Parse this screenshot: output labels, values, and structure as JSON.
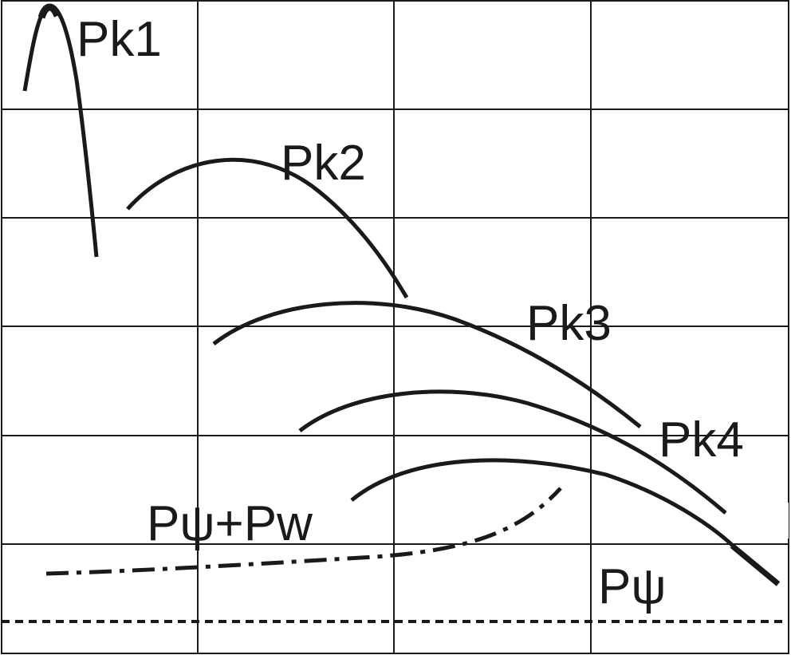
{
  "labels": {
    "pk1": "Pk1",
    "pk2": "Pk2",
    "pk3": "Pk3",
    "pk4": "Pk4",
    "p_psi_pw": "Pψ+Pw",
    "p_psi": "Pψ"
  },
  "colors": {
    "ink": "#1a1a1a",
    "grid": "#1a1a1a",
    "background": "#ffffff"
  }
}
